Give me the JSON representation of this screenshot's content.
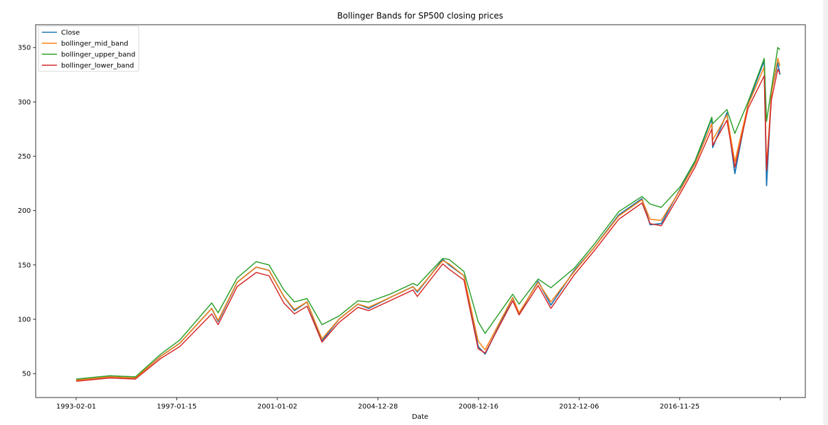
{
  "chart_data": {
    "type": "line",
    "title": "Bollinger Bands for SP500 closing prices",
    "xlabel": "Date",
    "ylabel": "",
    "x_ticks": [
      "1993-02-01",
      "1997-01-15",
      "2001-01-02",
      "2004-12-28",
      "2008-12-16",
      "2012-12-06",
      "2016-11-25",
      ""
    ],
    "y_ticks": [
      50,
      100,
      150,
      200,
      250,
      300,
      350
    ],
    "xlim": [
      "1991-07-01",
      "2021-10-01"
    ],
    "ylim": [
      28,
      371
    ],
    "grid": false,
    "legend_position": "top-left",
    "x": [
      "1993-02-01",
      "1994-06-01",
      "1995-06-01",
      "1996-06-01",
      "1997-03-01",
      "1998-06-01",
      "1998-09-01",
      "1999-06-01",
      "2000-03-01",
      "2000-09-01",
      "2001-04-01",
      "2001-09-01",
      "2002-03-01",
      "2002-10-01",
      "2003-06-01",
      "2004-03-01",
      "2004-08-01",
      "2005-06-01",
      "2006-05-01",
      "2006-07-01",
      "2007-07-01",
      "2007-10-01",
      "2008-05-01",
      "2008-11-20",
      "2009-03-01",
      "2010-04-01",
      "2010-07-01",
      "2011-04-01",
      "2011-10-01",
      "2012-09-01",
      "2013-06-01",
      "2014-06-01",
      "2015-05-01",
      "2015-08-25",
      "2016-02-01",
      "2016-11-01",
      "2017-06-01",
      "2018-01-26",
      "2018-02-08",
      "2018-09-01",
      "2018-12-24",
      "2019-07-01",
      "2020-02-19",
      "2020-03-23",
      "2020-06-01",
      "2020-09-01",
      "2020-10-01"
    ],
    "series": [
      {
        "name": "Close",
        "color": "#1f77b4",
        "values": [
          44,
          47,
          46,
          66,
          78,
          110,
          98,
          134,
          148,
          145,
          121,
          108,
          116,
          80,
          100,
          114,
          110,
          120,
          130,
          125,
          155,
          150,
          140,
          75,
          68,
          120,
          105,
          135,
          113,
          145,
          165,
          196,
          211,
          187,
          188,
          220,
          244,
          285,
          258,
          290,
          234,
          298,
          338,
          223,
          310,
          336,
          325
        ]
      },
      {
        "name": "bollinger_mid_band",
        "color": "#ff7f0e",
        "values": [
          44,
          47,
          46,
          66,
          78,
          110,
          99,
          134,
          148,
          145,
          121,
          109,
          116,
          82,
          100,
          114,
          111,
          120,
          130,
          126,
          154,
          151,
          140,
          80,
          72,
          120,
          106,
          134,
          116,
          144,
          165,
          195,
          210,
          192,
          191,
          219,
          243,
          280,
          265,
          288,
          245,
          297,
          332,
          240,
          308,
          340,
          333
        ]
      },
      {
        "name": "bollinger_upper_band",
        "color": "#2ca02c",
        "values": [
          45,
          48,
          47,
          68,
          81,
          115,
          106,
          138,
          153,
          150,
          127,
          116,
          119,
          95,
          103,
          117,
          116,
          123,
          133,
          131,
          156,
          155,
          144,
          98,
          87,
          123,
          114,
          137,
          129,
          147,
          168,
          199,
          213,
          206,
          203,
          222,
          246,
          286,
          280,
          293,
          271,
          300,
          340,
          282,
          312,
          350,
          348
        ]
      },
      {
        "name": "bollinger_lower_band",
        "color": "#d62728",
        "values": [
          43,
          46,
          45,
          64,
          75,
          105,
          95,
          130,
          143,
          140,
          115,
          105,
          112,
          79,
          97,
          111,
          108,
          117,
          127,
          121,
          151,
          146,
          136,
          73,
          69,
          117,
          104,
          131,
          110,
          141,
          162,
          192,
          207,
          188,
          186,
          216,
          240,
          275,
          260,
          283,
          240,
          294,
          324,
          237,
          302,
          330,
          326
        ]
      }
    ]
  }
}
